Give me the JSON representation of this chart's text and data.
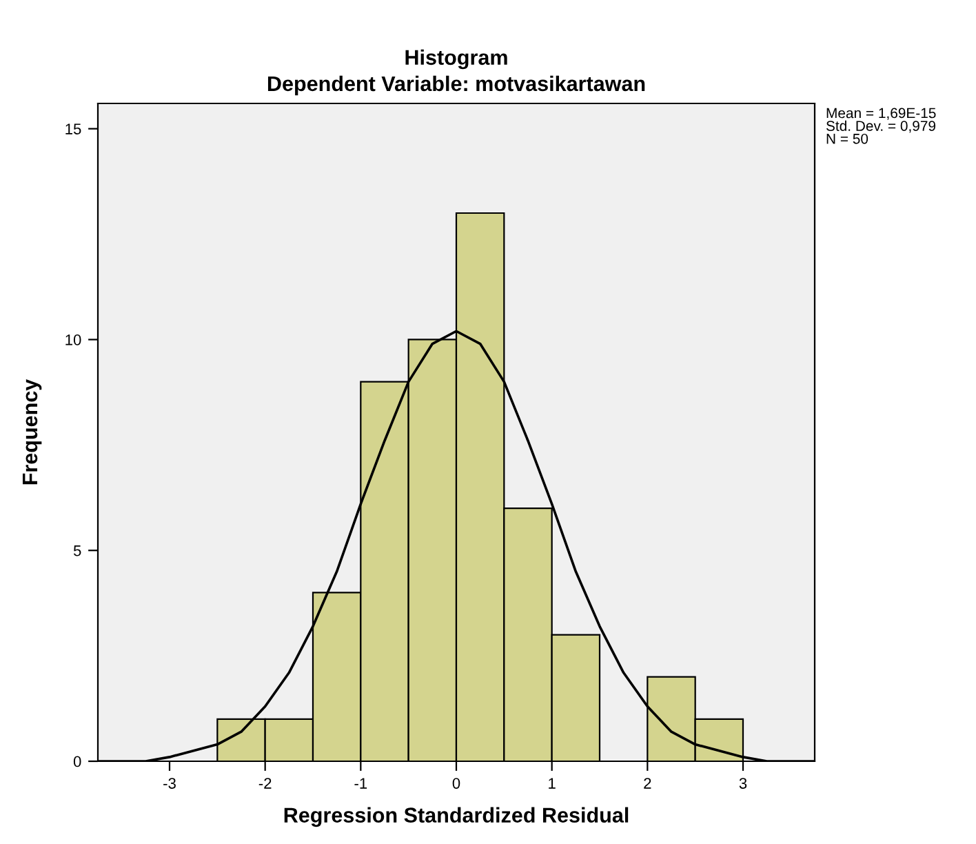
{
  "chart_data": {
    "type": "histogram",
    "title": "Histogram",
    "subtitle": "Dependent Variable: motvasikartawan",
    "xlabel": "Regression Standardized Residual",
    "ylabel": "Frequency",
    "bins": [
      -2.5,
      -2,
      -1.5,
      -1,
      -0.5,
      0,
      0.5,
      1,
      1.5,
      2,
      2.5,
      3
    ],
    "values": [
      1,
      1,
      4,
      9,
      10,
      13,
      6,
      3,
      0,
      2,
      1
    ],
    "color": "#d4d48e",
    "series": [
      {
        "type": "line",
        "color": "#000000",
        "x": [
          -3.75,
          -3.25,
          -3,
          -2.5,
          -2.25,
          -2,
          -1.75,
          -1.5,
          -1.25,
          -1,
          -0.75,
          -0.5,
          -0.25,
          0,
          0.25,
          0.5,
          0.75,
          1,
          1.25,
          1.5,
          1.75,
          2,
          2.25,
          2.5,
          3,
          3.25,
          3.75
        ],
        "values": [
          0.0,
          0.0,
          0.1,
          0.4,
          0.7,
          1.3,
          2.1,
          3.2,
          4.5,
          6.1,
          7.6,
          9.0,
          9.9,
          10.2,
          9.9,
          9.0,
          7.6,
          6.1,
          4.5,
          3.2,
          2.1,
          1.3,
          0.7,
          0.4,
          0.1,
          0.0,
          0.0
        ]
      }
    ],
    "annotations": [
      "Mean = 1,69E-15\nStd. Dev. = 0,979\nN = 50"
    ],
    "xlim": [
      -3.75,
      3.75
    ],
    "ylim": [
      0,
      15.6
    ],
    "xticks": [
      -3,
      -2,
      -1,
      0,
      1,
      2,
      3
    ],
    "yticks": [
      0,
      5,
      10,
      15
    ],
    "grid": false,
    "legend": false
  }
}
